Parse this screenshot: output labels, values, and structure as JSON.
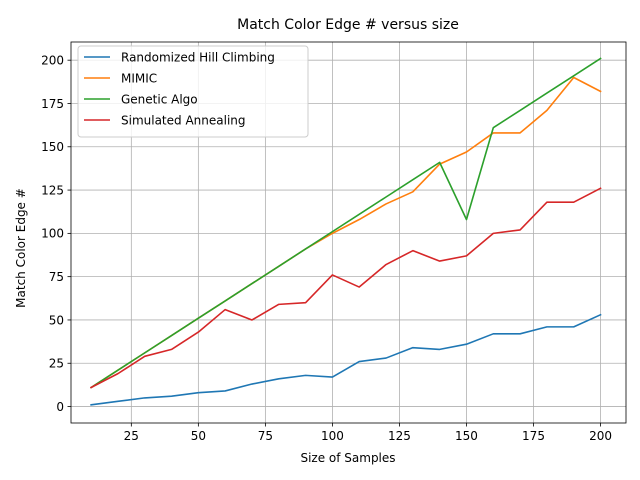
{
  "chart_data": {
    "type": "line",
    "title": "Match Color Edge # versus size",
    "xlabel": "Size of Samples",
    "ylabel": "Match Color Edge #",
    "xlim": [
      2.5,
      209.5
    ],
    "ylim": [
      -9.5,
      210.5
    ],
    "xticks": [
      25,
      50,
      75,
      100,
      125,
      150,
      175,
      200
    ],
    "yticks": [
      0,
      25,
      50,
      75,
      100,
      125,
      150,
      175,
      200
    ],
    "grid": true,
    "legend_position": "top-left",
    "x": [
      10,
      20,
      30,
      40,
      50,
      60,
      70,
      80,
      90,
      100,
      110,
      120,
      130,
      140,
      150,
      160,
      170,
      180,
      190,
      200
    ],
    "series": [
      {
        "name": "Randomized Hill Climbing",
        "color": "#1f77b4",
        "values": [
          1,
          3,
          5,
          6,
          8,
          9,
          13,
          16,
          18,
          17,
          26,
          28,
          34,
          33,
          36,
          42,
          42,
          46,
          46,
          53
        ]
      },
      {
        "name": "MIMIC",
        "color": "#ff7f0e",
        "values": [
          11,
          21,
          31,
          41,
          51,
          61,
          71,
          81,
          91,
          100,
          108,
          117,
          124,
          140,
          147,
          158,
          158,
          171,
          190,
          182
        ]
      },
      {
        "name": "Genetic Algo",
        "color": "#2ca02c",
        "values": [
          11,
          21,
          31,
          41,
          51,
          61,
          71,
          81,
          91,
          101,
          111,
          121,
          131,
          141,
          108,
          161,
          171,
          181,
          191,
          201
        ]
      },
      {
        "name": "Simulated Annealing",
        "color": "#d62728",
        "values": [
          11,
          19,
          29,
          33,
          43,
          56,
          50,
          59,
          60,
          76,
          69,
          82,
          90,
          84,
          87,
          100,
          102,
          118,
          118,
          126
        ]
      }
    ]
  }
}
